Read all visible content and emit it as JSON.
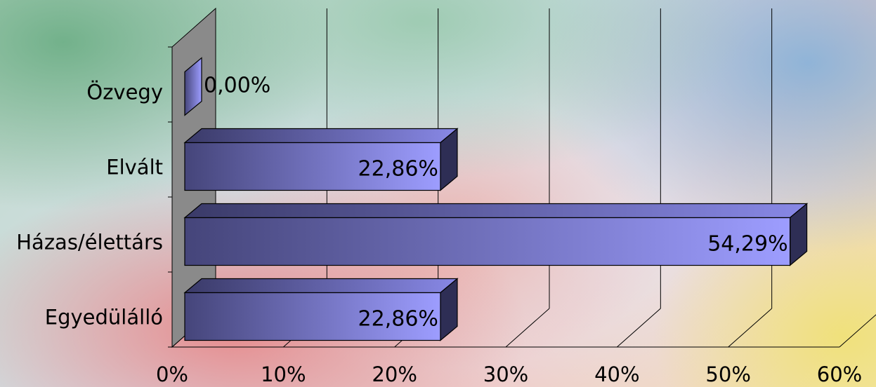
{
  "chart_data": {
    "type": "bar",
    "orientation": "horizontal",
    "three_d": true,
    "categories": [
      "Egyedülálló",
      "Házas/élettárs",
      "Elvált",
      "Özvegy"
    ],
    "values": [
      22.86,
      54.29,
      22.86,
      0.0
    ],
    "data_labels": [
      "22,86%",
      "54,29%",
      "22,86%",
      "0,00%"
    ],
    "xlim": [
      0,
      60
    ],
    "x_ticks": [
      0,
      10,
      20,
      30,
      40,
      50,
      60
    ],
    "x_tick_labels": [
      "0%",
      "10%",
      "20%",
      "30%",
      "40%",
      "50%",
      "60%"
    ],
    "grid": true,
    "bar_color_start": "#45457a",
    "bar_color_end": "#9d9dff",
    "wall_color": "#8a8a8a"
  }
}
